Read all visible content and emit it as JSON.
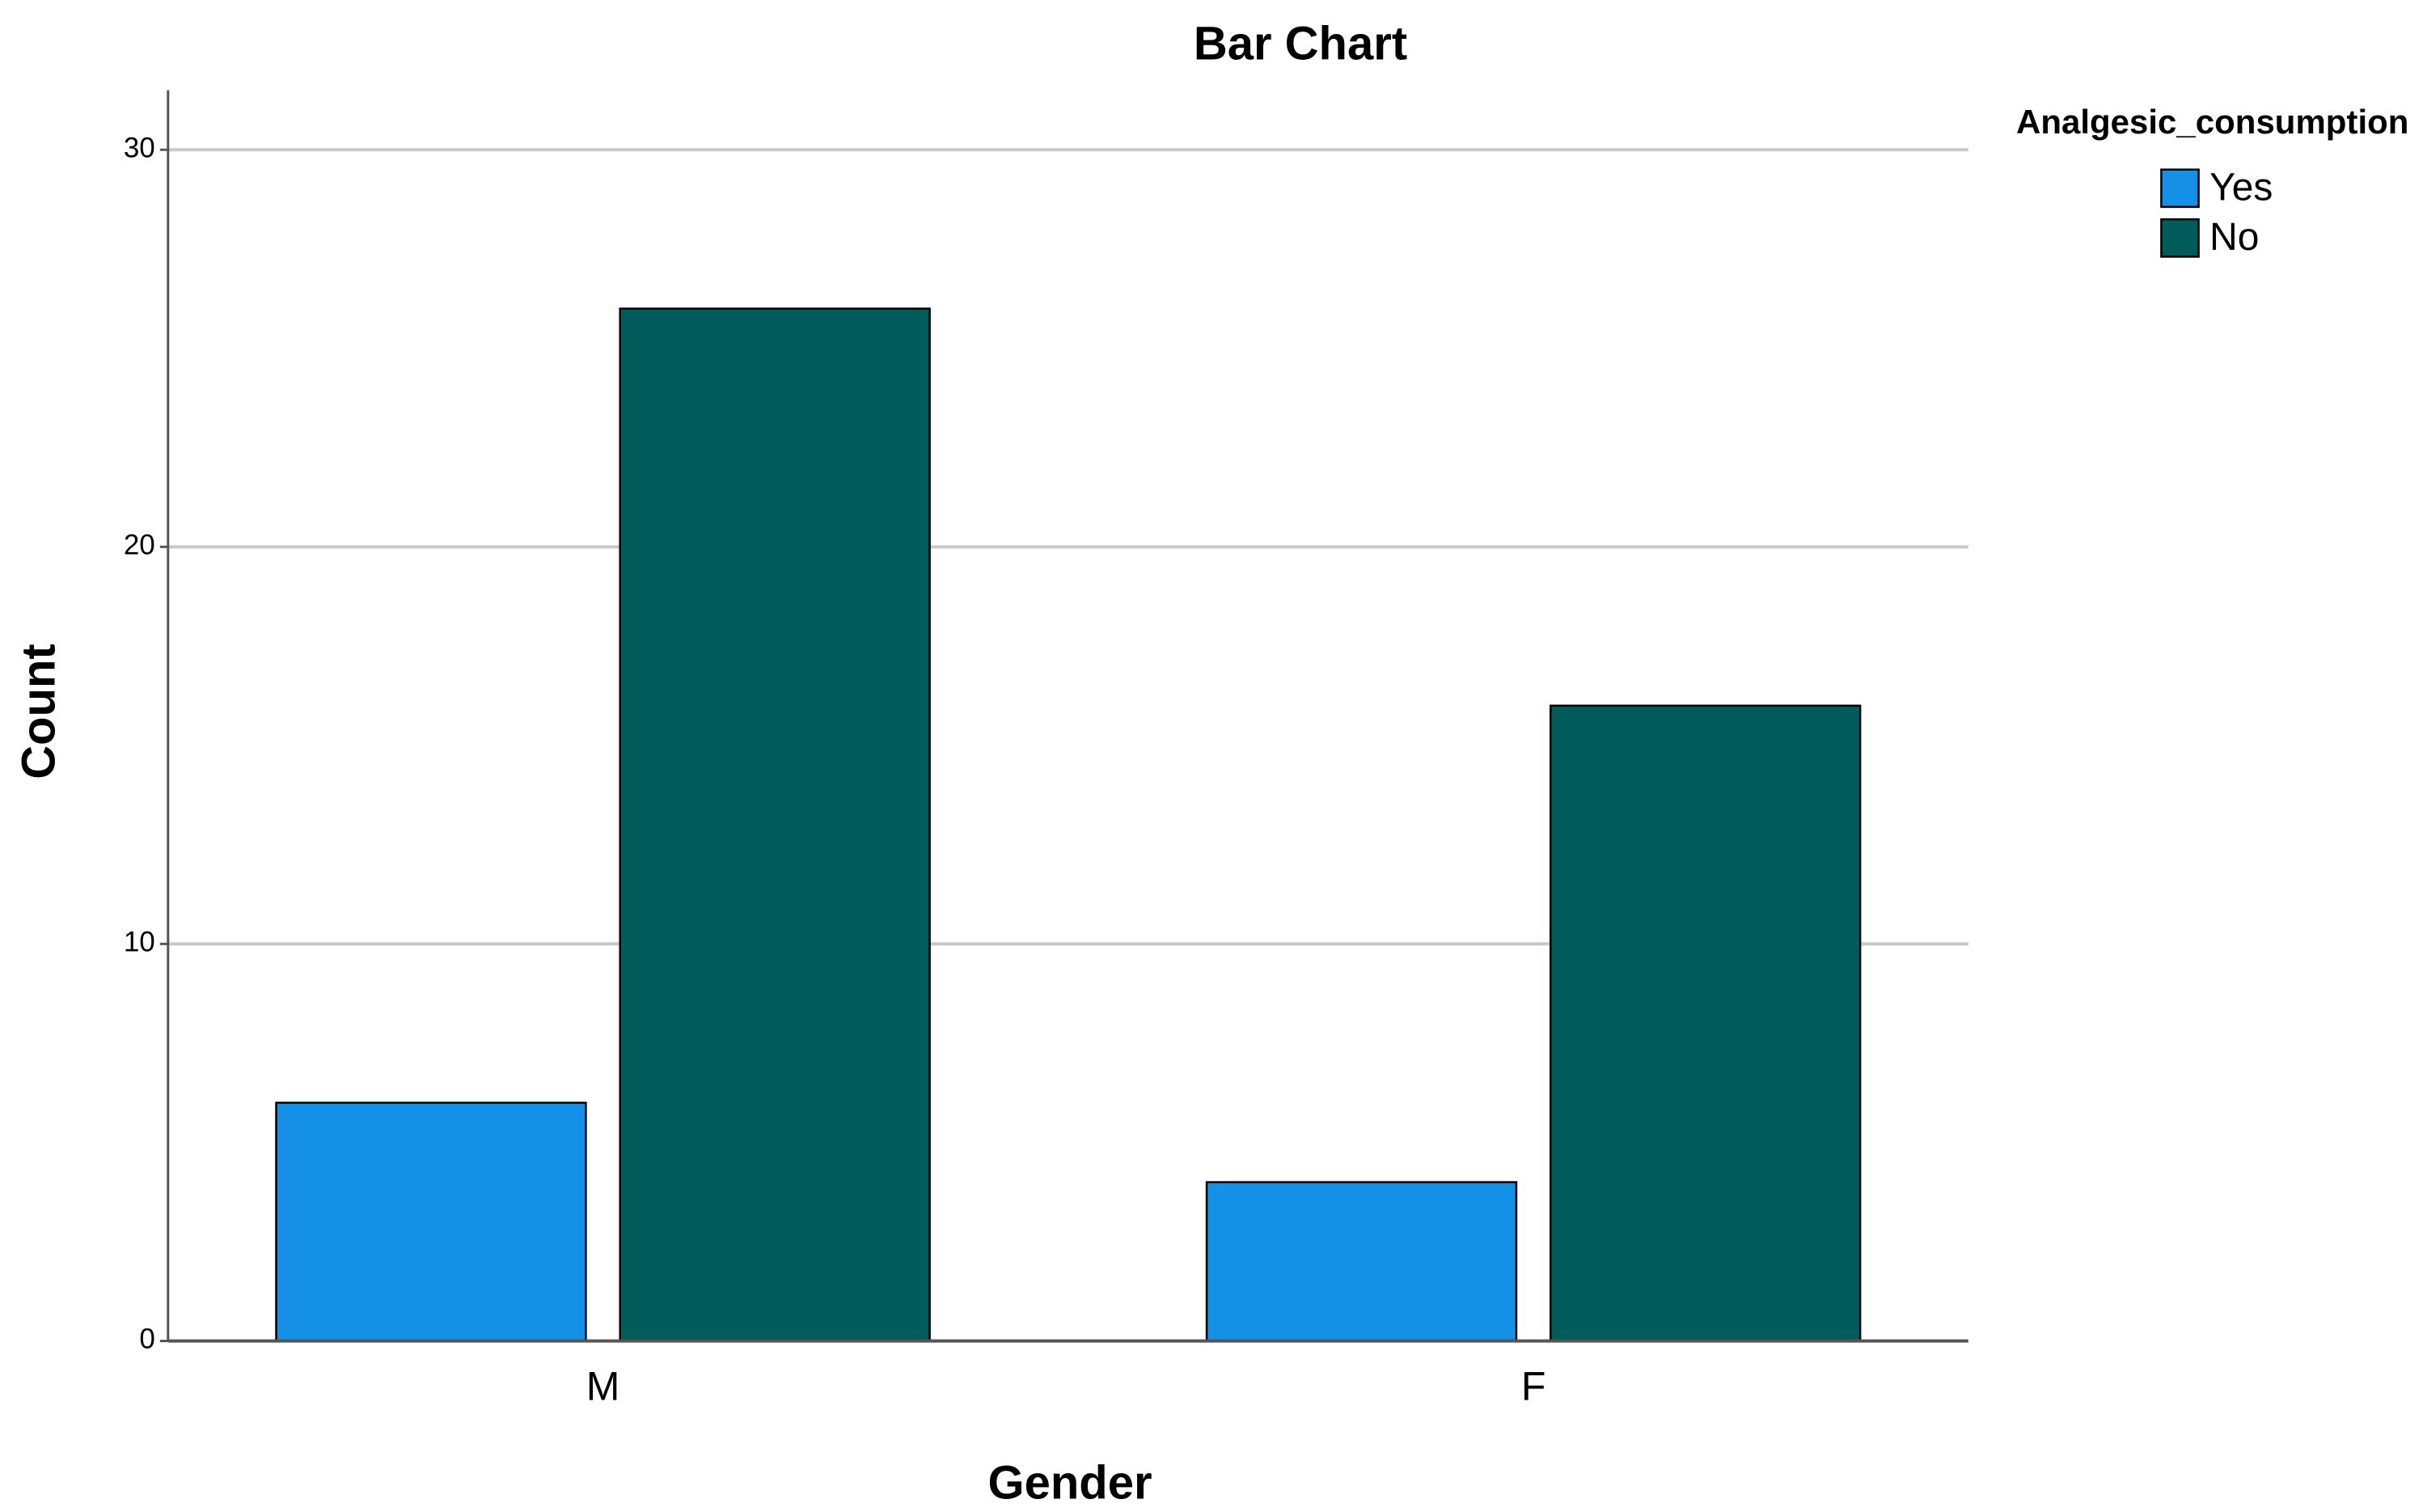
{
  "chart_data": {
    "type": "bar",
    "title": "Bar Chart",
    "x_label": "Gender",
    "y_label": "Count",
    "categories": [
      "M",
      "F"
    ],
    "legend_title": "Analgesic_consumption",
    "series": [
      {
        "name": "Yes",
        "color": "#1490e6",
        "values": [
          6,
          4
        ]
      },
      {
        "name": "No",
        "color": "#025c5c",
        "values": [
          26,
          16
        ]
      }
    ],
    "ylim": [
      0,
      31.5
    ],
    "yticks": [
      0,
      10,
      20,
      30
    ],
    "grid": true,
    "legend": "right"
  }
}
